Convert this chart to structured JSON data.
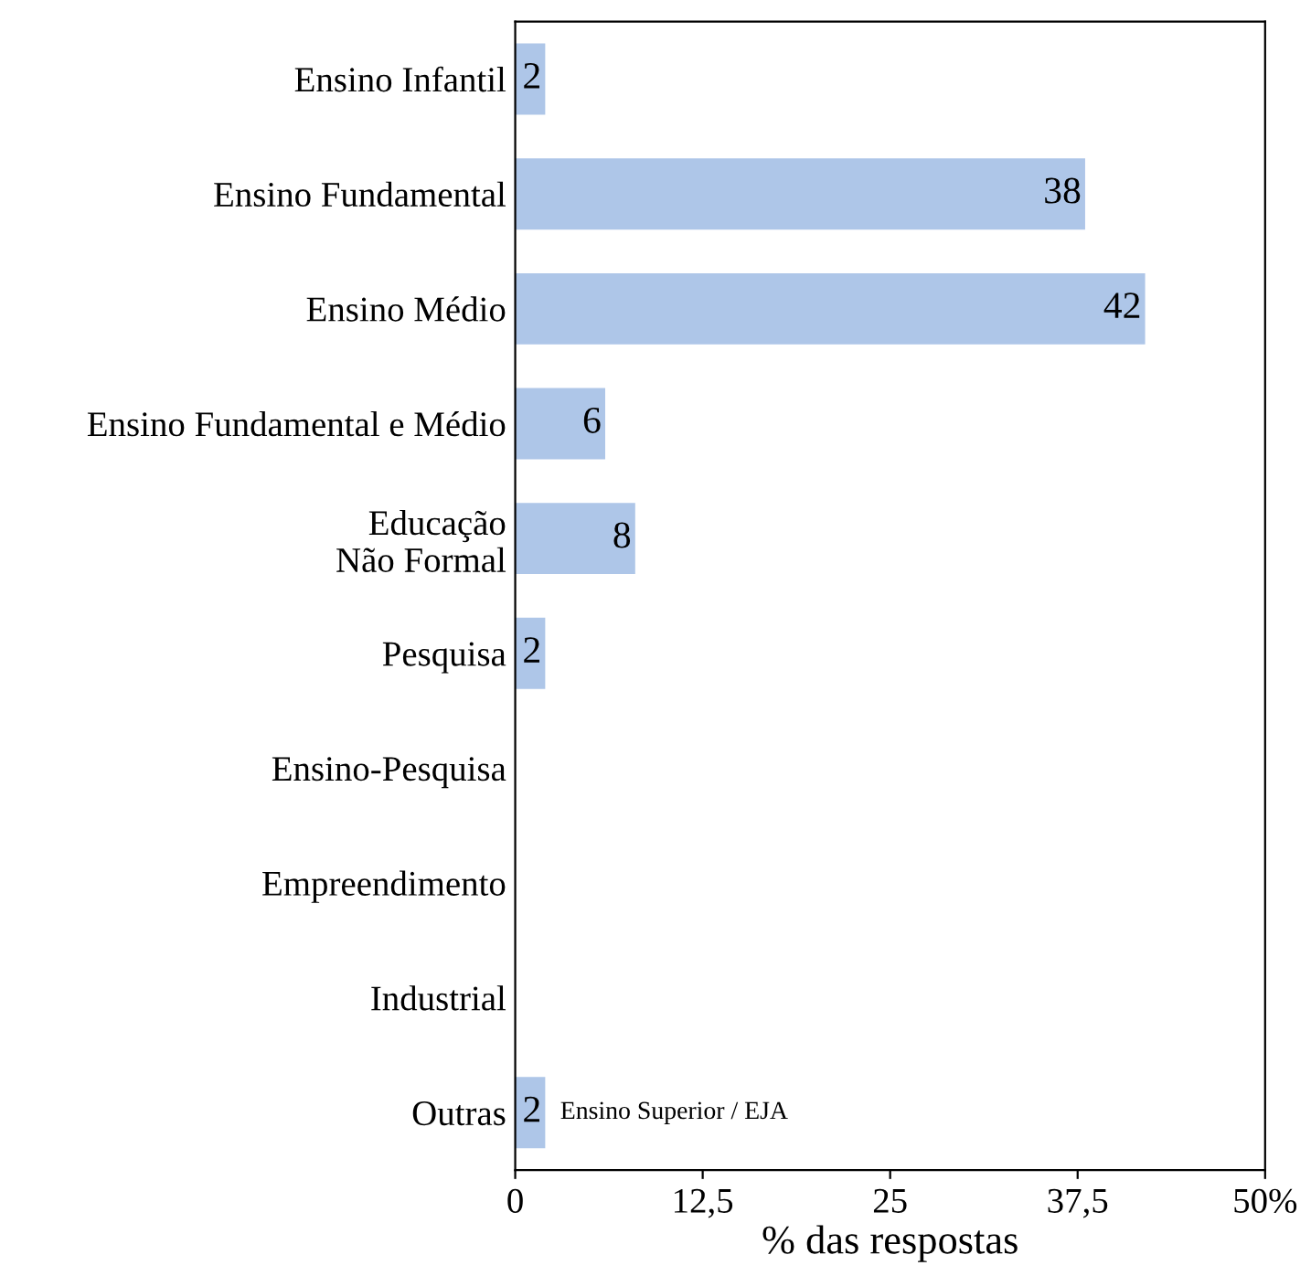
{
  "chart_data": {
    "type": "bar",
    "orientation": "horizontal",
    "xlabel": "% das respostas",
    "categories": [
      "Ensino Infantil",
      "Ensino Fundamental",
      "Ensino Médio",
      "Ensino Fundamental e Médio",
      "Educação\nNão Formal",
      "Pesquisa",
      "Ensino-Pesquisa",
      "Empreendimento",
      "Industrial",
      "Outras"
    ],
    "values": [
      2,
      38,
      42,
      6,
      8,
      2,
      null,
      null,
      null,
      2
    ],
    "value_labels": [
      "2",
      "38",
      "42",
      "6",
      "8",
      "2",
      null,
      null,
      null,
      "2"
    ],
    "color": "#aec6e8",
    "xlim": [
      0,
      50
    ],
    "xticks": [
      0,
      {
        "value": 12.5,
        "label": "12,5"
      },
      25,
      {
        "value": 37.5,
        "label": "37,5"
      },
      {
        "value": 50,
        "label": "50%"
      }
    ],
    "annotations": [
      {
        "text": "Ensino Superior / EJA",
        "x": 2,
        "y": "Outras"
      }
    ],
    "grid": false,
    "legend": false
  }
}
